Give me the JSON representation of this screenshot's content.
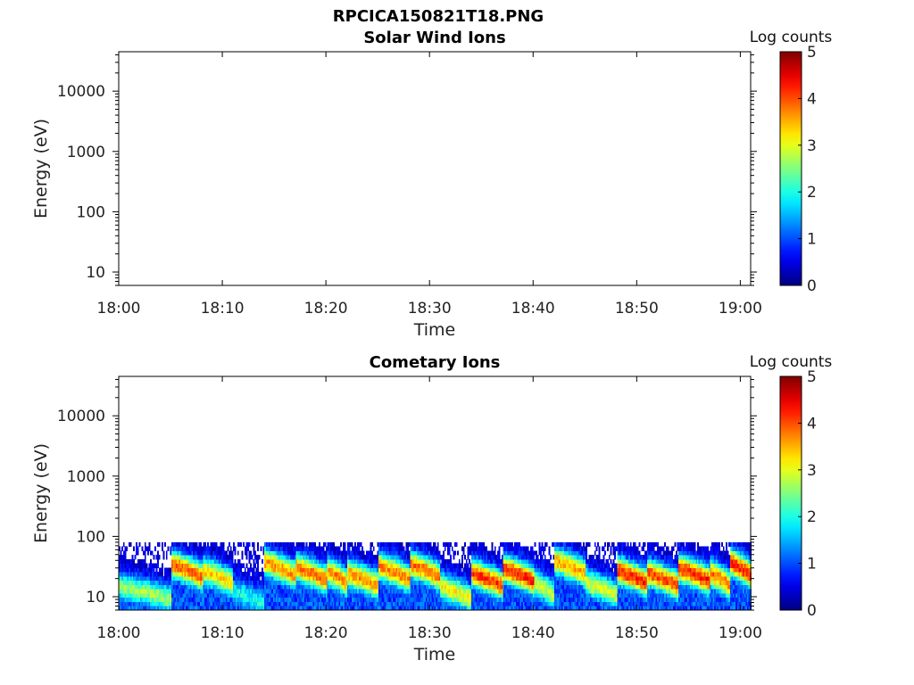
{
  "figure": {
    "title": "RPCICA150821T18.PNG"
  },
  "chart_data": [
    {
      "type": "heatmap",
      "title": "Solar Wind Ions",
      "xlabel": "Time",
      "ylabel": "Energy (eV)",
      "x_tick_labels": [
        "18:00",
        "18:10",
        "18:20",
        "18:30",
        "18:40",
        "18:50",
        "19:00"
      ],
      "xlim": [
        "18:00",
        "19:01"
      ],
      "y_scale": "log",
      "y_tick_labels": [
        "10",
        "100",
        "1000",
        "10000"
      ],
      "ylim": [
        6,
        45000
      ],
      "colorbar": {
        "label": "Log counts",
        "range": [
          0,
          5
        ],
        "ticks": [
          "0",
          "1",
          "2",
          "3",
          "4",
          "5"
        ],
        "colormap": "jet"
      },
      "data_present": false,
      "bands": []
    },
    {
      "type": "heatmap",
      "title": "Cometary Ions",
      "xlabel": "Time",
      "ylabel": "Energy (eV)",
      "x_tick_labels": [
        "18:00",
        "18:10",
        "18:20",
        "18:30",
        "18:40",
        "18:50",
        "19:00"
      ],
      "xlim": [
        "18:00",
        "19:01"
      ],
      "y_scale": "log",
      "y_tick_labels": [
        "10",
        "100",
        "1000",
        "10000"
      ],
      "ylim": [
        6,
        45000
      ],
      "colorbar": {
        "label": "Log counts",
        "range": [
          0,
          5
        ],
        "ticks": [
          "0",
          "1",
          "2",
          "3",
          "4",
          "5"
        ],
        "colormap": "jet"
      },
      "data_present": true,
      "energy_range_eV": [
        6,
        80
      ],
      "bands": [
        {
          "start": "18:00",
          "end": "18:05",
          "peak_energy_eV": 12,
          "peak_log_counts": 2.3
        },
        {
          "start": "18:05",
          "end": "18:08",
          "peak_energy_eV": 28,
          "peak_log_counts": 3.6
        },
        {
          "start": "18:08",
          "end": "18:11",
          "peak_energy_eV": 22,
          "peak_log_counts": 3.0
        },
        {
          "start": "18:11",
          "end": "18:14",
          "peak_energy_eV": 10,
          "peak_log_counts": 1.6
        },
        {
          "start": "18:14",
          "end": "18:17",
          "peak_energy_eV": 30,
          "peak_log_counts": 3.3
        },
        {
          "start": "18:17",
          "end": "18:20",
          "peak_energy_eV": 25,
          "peak_log_counts": 3.5
        },
        {
          "start": "18:20",
          "end": "18:22",
          "peak_energy_eV": 22,
          "peak_log_counts": 3.4
        },
        {
          "start": "18:22",
          "end": "18:25",
          "peak_energy_eV": 20,
          "peak_log_counts": 3.3
        },
        {
          "start": "18:25",
          "end": "18:28",
          "peak_energy_eV": 26,
          "peak_log_counts": 3.4
        },
        {
          "start": "18:28",
          "end": "18:31",
          "peak_energy_eV": 28,
          "peak_log_counts": 3.5
        },
        {
          "start": "18:31",
          "end": "18:34",
          "peak_energy_eV": 12,
          "peak_log_counts": 2.8
        },
        {
          "start": "18:34",
          "end": "18:37",
          "peak_energy_eV": 20,
          "peak_log_counts": 3.8
        },
        {
          "start": "18:37",
          "end": "18:40",
          "peak_energy_eV": 24,
          "peak_log_counts": 3.9
        },
        {
          "start": "18:40",
          "end": "18:42",
          "peak_energy_eV": 14,
          "peak_log_counts": 2.5
        },
        {
          "start": "18:42",
          "end": "18:45",
          "peak_energy_eV": 32,
          "peak_log_counts": 3.2
        },
        {
          "start": "18:45",
          "end": "18:48",
          "peak_energy_eV": 14,
          "peak_log_counts": 2.6
        },
        {
          "start": "18:48",
          "end": "18:51",
          "peak_energy_eV": 22,
          "peak_log_counts": 3.9
        },
        {
          "start": "18:51",
          "end": "18:54",
          "peak_energy_eV": 20,
          "peak_log_counts": 3.7
        },
        {
          "start": "18:54",
          "end": "18:57",
          "peak_energy_eV": 24,
          "peak_log_counts": 3.9
        },
        {
          "start": "18:57",
          "end": "18:59",
          "peak_energy_eV": 20,
          "peak_log_counts": 3.5
        },
        {
          "start": "18:59",
          "end": "19:01",
          "peak_energy_eV": 30,
          "peak_log_counts": 3.9
        }
      ]
    }
  ]
}
